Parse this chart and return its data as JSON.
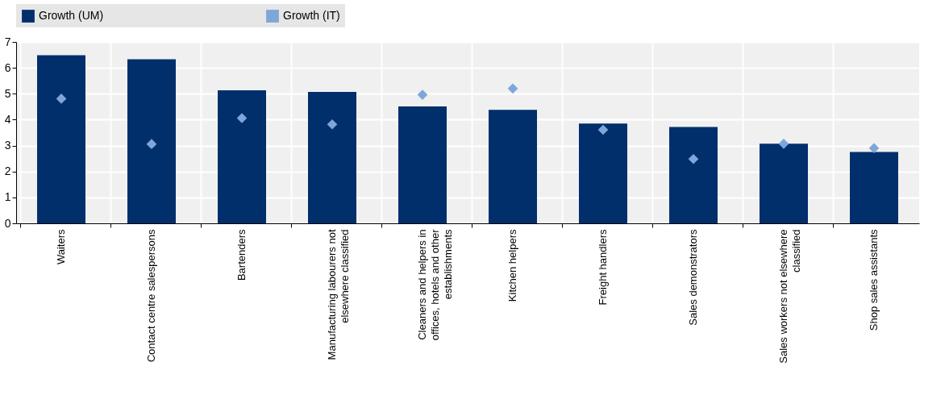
{
  "chart_data": {
    "type": "bar",
    "categories": [
      "Waiters",
      "Contact centre salespersons",
      "Bartenders",
      "Manufacturing labourers not elsewhere classified",
      "Cleaners and helpers in offices, hotels and other establishments",
      "Kitchen helpers",
      "Freight handlers",
      "Sales demonstrators",
      "Sales workers not elsewhere classified",
      "Shop sales assistants"
    ],
    "series": [
      {
        "name": "Growth (UM)",
        "color": "#002f6c",
        "values": [
          6.49,
          6.33,
          5.13,
          5.07,
          4.51,
          4.38,
          3.85,
          3.72,
          3.07,
          2.75
        ]
      },
      {
        "name": "Growth (IT)",
        "type": "scatter",
        "marker": "diamond",
        "color": "#7ea6d9",
        "values": [
          4.81,
          3.06,
          4.06,
          3.82,
          4.96,
          5.2,
          3.61,
          2.48,
          3.07,
          2.9
        ]
      }
    ],
    "ylim": [
      0,
      7
    ],
    "yticks": [
      0,
      1,
      2,
      3,
      4,
      5,
      6,
      7
    ],
    "grid": true,
    "legend": "top"
  }
}
